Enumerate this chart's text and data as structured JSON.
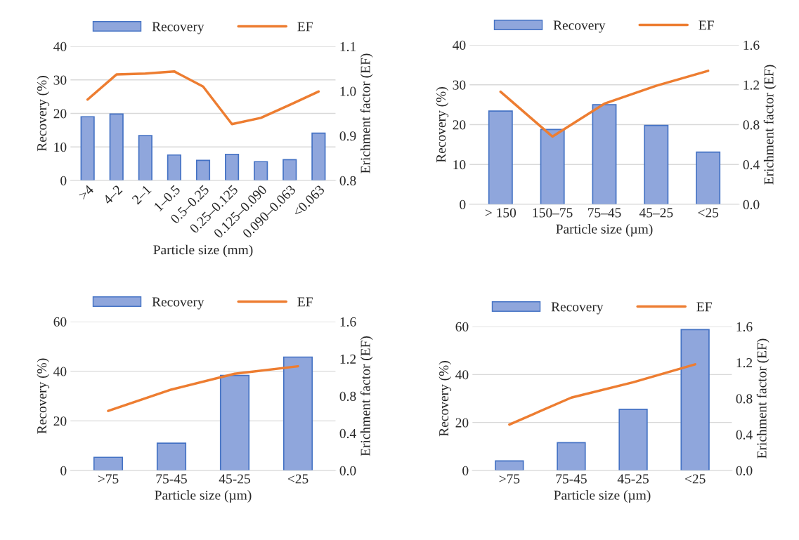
{
  "chart_data": [
    {
      "type": "bar",
      "categories": [
        ">4",
        "4–2",
        "2–1",
        "1–0.5",
        "0.5–0.25",
        "0.25–0.125",
        "0.125–0.090",
        "0.090–0.063",
        "<0.063"
      ],
      "xlabel": "Particle size (mm)",
      "ylabel": "Recovery (%)",
      "y2label": "Erichment factor (EF)",
      "ylim": [
        0,
        40
      ],
      "yticks": [
        0,
        10,
        20,
        30,
        40
      ],
      "y2lim": [
        0.8,
        1.1
      ],
      "y2ticks": [
        {
          "value": 0.8,
          "label": "0.8"
        },
        {
          "value": 0.9,
          "label": "0.9"
        },
        {
          "value": 1.0,
          "label": "1.0"
        },
        {
          "value": 1.1,
          "label": "1.1"
        }
      ],
      "grid": "y",
      "legend": "top",
      "series": [
        {
          "name": "Recovery",
          "color": "#8fa6dc",
          "values": [
            19.0,
            19.8,
            13.4,
            7.6,
            6.0,
            7.8,
            5.6,
            6.2,
            14.1
          ]
        },
        {
          "name": "EF",
          "type": "line",
          "axis": "y2",
          "color": "#ed7d31",
          "values": [
            0.981,
            1.037,
            1.039,
            1.044,
            1.01,
            0.926,
            0.94,
            0.969,
            0.999
          ]
        }
      ]
    },
    {
      "type": "bar",
      "categories": [
        "> 150",
        "150–75",
        "75–45",
        "45–25",
        "<25"
      ],
      "xlabel": "Particle size (µm)",
      "ylabel": "Recovery (%)",
      "y2label": "Erichment factor (EF)",
      "ylim": [
        0,
        40
      ],
      "yticks": [
        0,
        10,
        20,
        30,
        40
      ],
      "y2lim": [
        0,
        1.6
      ],
      "y2ticks": [
        {
          "value": 0,
          "label": "0.0"
        },
        {
          "value": 0.4,
          "label": "0.4"
        },
        {
          "value": 0.8,
          "label": "0.8"
        },
        {
          "value": 1.2,
          "label": "1.2"
        },
        {
          "value": 1.6,
          "label": "1.6"
        }
      ],
      "grid": "y",
      "legend": "top",
      "series": [
        {
          "name": "Recovery",
          "color": "#8fa6dc",
          "values": [
            23.4,
            18.8,
            25.0,
            19.8,
            13.1
          ]
        },
        {
          "name": "EF",
          "type": "line",
          "axis": "y2",
          "color": "#ed7d31",
          "values": [
            1.13,
            0.68,
            1.01,
            1.19,
            1.34
          ]
        }
      ]
    },
    {
      "type": "bar",
      "categories": [
        ">75",
        "75-45",
        "45-25",
        "<25"
      ],
      "xlabel": "Particle size (µm)",
      "ylabel": "Recovery (%)",
      "y2label": "Erichment factor (EF)",
      "ylim": [
        0,
        60
      ],
      "yticks": [
        0,
        20,
        40,
        60
      ],
      "y2lim": [
        0,
        1.6
      ],
      "y2ticks": [
        {
          "value": 0,
          "label": "0.0"
        },
        {
          "value": 0.4,
          "label": "0.4"
        },
        {
          "value": 0.8,
          "label": "0.8"
        },
        {
          "value": 1.2,
          "label": "1.2"
        },
        {
          "value": 1.6,
          "label": "1.6"
        }
      ],
      "grid": "y",
      "legend": "top",
      "series": [
        {
          "name": "Recovery",
          "color": "#8fa6dc",
          "values": [
            5.3,
            11.0,
            38.3,
            45.7
          ]
        },
        {
          "name": "EF",
          "type": "line",
          "axis": "y2",
          "color": "#ed7d31",
          "values": [
            0.64,
            0.87,
            1.04,
            1.12
          ]
        }
      ]
    },
    {
      "type": "bar",
      "categories": [
        ">75",
        "75-45",
        "45-25",
        "<25"
      ],
      "xlabel": "Particle size (µm)",
      "ylabel": "Recovery (%)",
      "y2label": "Erichment factor (EF)",
      "ylim": [
        0,
        60
      ],
      "yticks": [
        0,
        20,
        40,
        60
      ],
      "y2lim": [
        0,
        1.6
      ],
      "y2ticks": [
        {
          "value": 0,
          "label": "0.0"
        },
        {
          "value": 0.4,
          "label": "0.4"
        },
        {
          "value": 0.8,
          "label": "0.8"
        },
        {
          "value": 1.2,
          "label": "1.2"
        },
        {
          "value": 1.6,
          "label": "1.6"
        }
      ],
      "grid": "y",
      "legend": "top",
      "series": [
        {
          "name": "Recovery",
          "color": "#8fa6dc",
          "values": [
            4.0,
            11.6,
            25.5,
            58.7
          ]
        },
        {
          "name": "EF",
          "type": "line",
          "axis": "y2",
          "color": "#ed7d31",
          "values": [
            0.51,
            0.81,
            0.98,
            1.18
          ]
        }
      ]
    }
  ]
}
